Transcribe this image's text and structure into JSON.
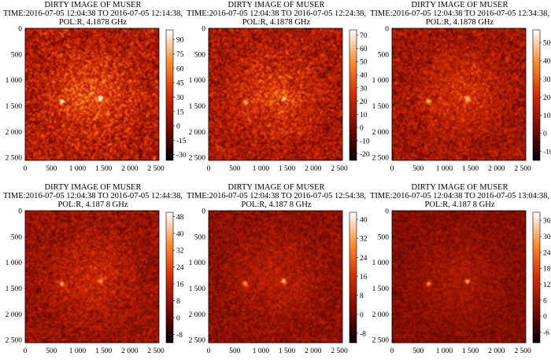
{
  "chart_data": [
    {
      "type": "heatmap",
      "title": "DIRTY IMAGE OF MUSER",
      "subtitle_line1": "TIME:2016-07-05 12:04:38 TO 2016-07-05 12:14:38,",
      "subtitle_line2": "POL:R, 4.1878 GHz",
      "xlabel": "",
      "ylabel": "",
      "xlim": [
        0,
        2560
      ],
      "ylim": [
        0,
        2560
      ],
      "x_ticks": [
        "0",
        "500",
        "1 000",
        "1 500",
        "2 000",
        "2 500"
      ],
      "y_ticks": [
        "0",
        "500",
        "1 000",
        "1 500",
        "2 000",
        "2 500"
      ],
      "tick_values": [
        0,
        500,
        1000,
        1500,
        2000,
        2500
      ],
      "colorbar": {
        "range": [
          -36,
          100
        ],
        "ticks": [
          "90",
          "75",
          "60",
          "45",
          "30",
          "15",
          "0",
          "-15",
          "-30"
        ],
        "tick_values": [
          90,
          75,
          60,
          45,
          30,
          15,
          0,
          -15,
          -30
        ]
      },
      "colormap": [
        "#000000",
        "#7a0a00",
        "#d12a00",
        "#ff8a2a",
        "#ffffff"
      ]
    },
    {
      "type": "heatmap",
      "title": "DIRTY IMAGE OF MUSER",
      "subtitle_line1": "TIME:2016-07-05 12:04:38 TO 2016-07-05 12:24:38,",
      "subtitle_line2": "POL:R, 4.1878 GHz",
      "xlabel": "",
      "ylabel": "",
      "xlim": [
        0,
        2560
      ],
      "ylim": [
        0,
        2560
      ],
      "x_ticks": [
        "0",
        "500",
        "1 000",
        "1 500",
        "2 000",
        "2 500"
      ],
      "y_ticks": [
        "0",
        "500",
        "1 000",
        "1 500",
        "2 000",
        "2 500"
      ],
      "tick_values": [
        0,
        500,
        1000,
        1500,
        2000,
        2500
      ],
      "colorbar": {
        "range": [
          -25,
          74
        ],
        "ticks": [
          "70",
          "60",
          "50",
          "40",
          "30",
          "20",
          "10",
          "0",
          "-10",
          "-20"
        ],
        "tick_values": [
          70,
          60,
          50,
          40,
          30,
          20,
          10,
          0,
          -10,
          -20
        ]
      },
      "colormap": [
        "#000000",
        "#7a0a00",
        "#d12a00",
        "#ff8a2a",
        "#ffffff"
      ]
    },
    {
      "type": "heatmap",
      "title": "DIRTY IMAGE OF MUSER",
      "subtitle_line1": "TIME:2016-07-05 12:04:38 TO 2016-07-05 12:34:38,",
      "subtitle_line2": "POL:R, 4.1878 GHz",
      "xlabel": "",
      "ylabel": "",
      "xlim": [
        0,
        2560
      ],
      "ylim": [
        0,
        2560
      ],
      "x_ticks": [
        "0",
        "500",
        "1 000",
        "1 500",
        "2 000",
        "2 500"
      ],
      "y_ticks": [
        "0",
        "500",
        "1 000",
        "1 500",
        "2 000",
        "2 500"
      ],
      "tick_values": [
        0,
        500,
        1000,
        1500,
        2000,
        2500
      ],
      "colorbar": {
        "range": [
          -15,
          57
        ],
        "ticks": [
          "50",
          "40",
          "30",
          "20",
          "10",
          "0",
          "-10"
        ],
        "tick_values": [
          50,
          40,
          30,
          20,
          10,
          0,
          -10
        ]
      },
      "colormap": [
        "#000000",
        "#7a0a00",
        "#d12a00",
        "#ff8a2a",
        "#ffffff"
      ]
    },
    {
      "type": "heatmap",
      "title": "DIRTY IMAGE OF MUSER",
      "subtitle_line1": "TIME:2016-07-05 12:04:38 TO 2016-07-05 12:44:38,",
      "subtitle_line2": "POL:R, 4.187 8 GHz",
      "xlabel": "",
      "ylabel": "",
      "xlim": [
        0,
        2560
      ],
      "ylim": [
        0,
        2560
      ],
      "x_ticks": [
        "0",
        "500",
        "1 000",
        "1 500",
        "2 000",
        "2 500"
      ],
      "y_ticks": [
        "0",
        "500",
        "1 000",
        "1 500",
        "2 000",
        "2 500"
      ],
      "tick_values": [
        0,
        500,
        1000,
        1500,
        2000,
        2500
      ],
      "colorbar": {
        "range": [
          -12,
          50
        ],
        "ticks": [
          "48",
          "40",
          "32",
          "24",
          "16",
          "8",
          "0",
          "-8"
        ],
        "tick_values": [
          48,
          40,
          32,
          24,
          16,
          8,
          0,
          -8
        ]
      },
      "colormap": [
        "#000000",
        "#7a0a00",
        "#d12a00",
        "#ff8a2a",
        "#ffffff"
      ]
    },
    {
      "type": "heatmap",
      "title": "DIRTY IMAGE OF MUSER",
      "subtitle_line1": "TIME:2016-07-05 12:04:38 TO 2016-07-05 12:54:38,",
      "subtitle_line2": "POL:R, 4.187 8 GHz",
      "xlabel": "",
      "ylabel": "",
      "xlim": [
        0,
        2560
      ],
      "ylim": [
        0,
        2560
      ],
      "x_ticks": [
        "0",
        "500",
        "1 000",
        "1 500",
        "2 000",
        "2 500"
      ],
      "y_ticks": [
        "0",
        "500",
        "1 000",
        "1 500",
        "2 000",
        "2 500"
      ],
      "tick_values": [
        0,
        500,
        1000,
        1500,
        2000,
        2500
      ],
      "colorbar": {
        "range": [
          -12,
          43
        ],
        "ticks": [
          "40",
          "32",
          "24",
          "16",
          "8",
          "0",
          "-8"
        ],
        "tick_values": [
          40,
          32,
          24,
          16,
          8,
          0,
          -8
        ]
      },
      "colormap": [
        "#000000",
        "#7a0a00",
        "#d12a00",
        "#ff8a2a",
        "#ffffff"
      ]
    },
    {
      "type": "heatmap",
      "title": "DIRTY IMAGE OF MUSER",
      "subtitle_line1": "TIME:2016-07-05 12:04:38 TO 2016-07-05 13:04:38,",
      "subtitle_line2": "POL:R, 4.187 8 GHz",
      "xlabel": "",
      "ylabel": "",
      "xlim": [
        0,
        2560
      ],
      "ylim": [
        0,
        2560
      ],
      "x_ticks": [
        "0",
        "500",
        "1 000",
        "1 500",
        "2 000",
        "2 500"
      ],
      "y_ticks": [
        "0",
        "500",
        "1 000",
        "1 500",
        "2 000",
        "2 500"
      ],
      "tick_values": [
        0,
        500,
        1000,
        1500,
        2000,
        2500
      ],
      "colorbar": {
        "range": [
          -10,
          39
        ],
        "ticks": [
          "36",
          "30",
          "24",
          "18",
          "12",
          "6",
          "0",
          "-6"
        ],
        "tick_values": [
          36,
          30,
          24,
          18,
          12,
          6,
          0,
          -6
        ]
      },
      "colormap": [
        "#000000",
        "#7a0a00",
        "#d12a00",
        "#ff8a2a",
        "#ffffff"
      ]
    }
  ]
}
